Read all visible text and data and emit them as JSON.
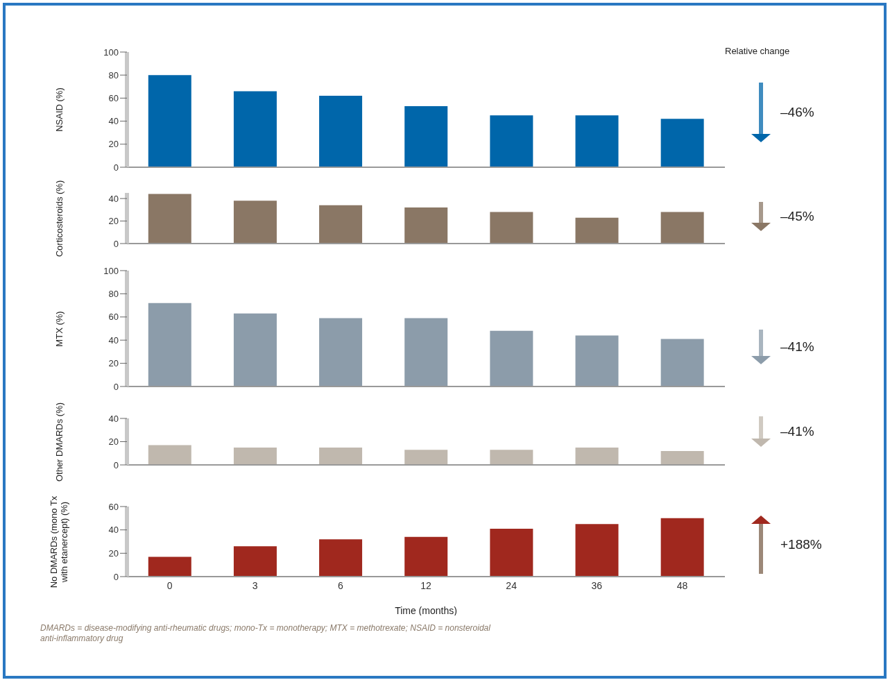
{
  "chart_data": [
    {
      "type": "bar",
      "ylabel": "NSAID (%)",
      "categories": [
        "0",
        "3",
        "6",
        "12",
        "24",
        "36",
        "48"
      ],
      "values": [
        80,
        66,
        62,
        53,
        45,
        45,
        42
      ],
      "color": "#0066aa",
      "ylim": [
        0,
        100
      ],
      "yticks": [
        0,
        20,
        40,
        60,
        80,
        100
      ],
      "tick_labels": "y",
      "annotations": [
        "–46%",
        "Relative change"
      ]
    },
    {
      "type": "bar",
      "ylabel": "Corticosteroids (%)",
      "categories": [
        "0",
        "3",
        "6",
        "12",
        "24",
        "36",
        "48"
      ],
      "values": [
        44,
        38,
        34,
        32,
        28,
        23,
        28
      ],
      "color": "#8a7765",
      "ylim": [
        0,
        45
      ],
      "yticks": [
        0,
        20,
        40
      ],
      "tick_labels": "y",
      "annotations": [
        "–45%"
      ]
    },
    {
      "type": "bar",
      "ylabel": "MTX (%)",
      "categories": [
        "0",
        "3",
        "6",
        "12",
        "24",
        "36",
        "48"
      ],
      "values": [
        72,
        63,
        59,
        59,
        48,
        44,
        41
      ],
      "color": "#8c9caa",
      "ylim": [
        0,
        100
      ],
      "yticks": [
        0,
        20,
        40,
        60,
        80,
        100
      ],
      "tick_labels": "y",
      "annotations": [
        "–41%"
      ]
    },
    {
      "type": "bar",
      "ylabel": "Other DMARDs (%)",
      "categories": [
        "0",
        "3",
        "6",
        "12",
        "24",
        "36",
        "48"
      ],
      "values": [
        17,
        15,
        15,
        13,
        13,
        15,
        12
      ],
      "color": "#c0b8ae",
      "ylim": [
        0,
        40
      ],
      "yticks": [
        0,
        20,
        40
      ],
      "tick_labels": "y",
      "annotations": [
        "–41%"
      ]
    },
    {
      "type": "bar",
      "ylabel": "No DMARDs (mono Tx with etanercept) (%)",
      "xlabel": "Time (months)",
      "categories": [
        "0",
        "3",
        "6",
        "12",
        "24",
        "36",
        "48"
      ],
      "values": [
        17,
        26,
        32,
        34,
        41,
        45,
        50
      ],
      "color": "#a0281e",
      "ylim": [
        0,
        60
      ],
      "yticks": [
        0,
        20,
        40,
        60
      ],
      "annotations": [
        "+188%",
        "DMARDs = disease-modifying anti-rheumatic drugs; mono-Tx = monotherapy; MTX = methotrexate; NSAID = nonsteroidal anti-inflammatory drug"
      ]
    }
  ]
}
